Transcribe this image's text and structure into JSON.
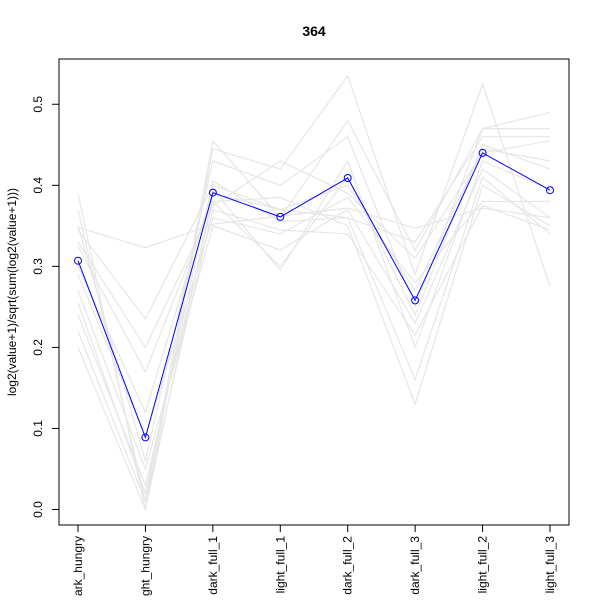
{
  "chart_data": {
    "type": "line",
    "title": "364",
    "xlabel": "",
    "ylabel": "log2(value+1)/sqrt(sum(log2(value+1)))",
    "categories": [
      "dark_hungry",
      "light_hungry",
      "dark_full_1",
      "light_full_1",
      "dark_full_2",
      "dark_full_3",
      "light_full_2",
      "light_full_3"
    ],
    "category_labels_visible": [
      "ark_hungry",
      "ght_hungry",
      "dark_full_1",
      "light_full_1",
      "dark_full_2",
      "dark_full_3",
      "light_full_2",
      "light_full_3"
    ],
    "ylim": [
      -0.02,
      0.56
    ],
    "yticks": [
      0.0,
      0.1,
      0.2,
      0.3,
      0.4,
      0.5
    ],
    "ytick_labels": [
      "0.0",
      "0.1",
      "0.2",
      "0.3",
      "0.4",
      "0.5"
    ],
    "highlight": {
      "color": "#0000ff",
      "values": [
        0.307,
        0.089,
        0.391,
        0.361,
        0.409,
        0.258,
        0.44,
        0.394
      ]
    },
    "background_color": "#e6e6e6",
    "background_series": [
      [
        0.39,
        0.0,
        0.445,
        0.42,
        0.535,
        0.29,
        0.525,
        0.275
      ],
      [
        0.37,
        0.01,
        0.455,
        0.36,
        0.48,
        0.32,
        0.47,
        0.47
      ],
      [
        0.35,
        0.06,
        0.43,
        0.4,
        0.46,
        0.25,
        0.47,
        0.49
      ],
      [
        0.345,
        0.235,
        0.4,
        0.37,
        0.36,
        0.33,
        0.46,
        0.46
      ],
      [
        0.33,
        0.2,
        0.375,
        0.43,
        0.39,
        0.31,
        0.44,
        0.455
      ],
      [
        0.325,
        0.17,
        0.38,
        0.3,
        0.41,
        0.24,
        0.45,
        0.42
      ],
      [
        0.3,
        0.12,
        0.395,
        0.295,
        0.43,
        0.2,
        0.43,
        0.395
      ],
      [
        0.29,
        0.09,
        0.36,
        0.34,
        0.385,
        0.28,
        0.38,
        0.38
      ],
      [
        0.27,
        0.05,
        0.35,
        0.32,
        0.37,
        0.23,
        0.42,
        0.36
      ],
      [
        0.255,
        0.02,
        0.405,
        0.355,
        0.36,
        0.16,
        0.41,
        0.34
      ],
      [
        0.24,
        0.03,
        0.38,
        0.385,
        0.35,
        0.13,
        0.4,
        0.35
      ],
      [
        0.22,
        0.01,
        0.37,
        0.345,
        0.34,
        0.215,
        0.375,
        0.345
      ],
      [
        0.2,
        0.0,
        0.39,
        0.37,
        0.4,
        0.27,
        0.445,
        0.43
      ],
      [
        0.348,
        0.323,
        0.352,
        0.362,
        0.372,
        0.347,
        0.372,
        0.36
      ]
    ]
  }
}
